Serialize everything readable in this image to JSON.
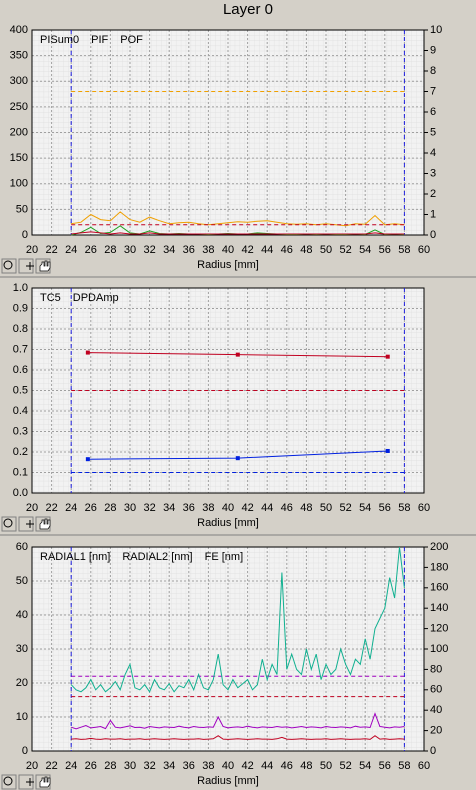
{
  "title": "Layer 0",
  "chart_data": [
    {
      "type": "line",
      "xlabel": "Radius [mm]",
      "xlim": [
        20,
        60
      ],
      "xticks": [
        20,
        22,
        24,
        26,
        28,
        30,
        32,
        34,
        36,
        38,
        40,
        42,
        44,
        46,
        48,
        50,
        52,
        54,
        56,
        58,
        60
      ],
      "ylim": [
        0,
        400
      ],
      "yticks": [
        0,
        50,
        100,
        150,
        200,
        250,
        300,
        350,
        400
      ],
      "y2lim": [
        0,
        10
      ],
      "y2ticks": [
        0,
        1,
        2,
        3,
        4,
        5,
        6,
        7,
        8,
        9,
        10
      ],
      "vlines": [
        24,
        58
      ],
      "grid": true,
      "markers": false,
      "x": [
        24,
        25,
        26,
        27,
        28,
        29,
        30,
        31,
        32,
        33,
        34,
        35,
        36,
        37,
        38,
        39,
        40,
        41,
        42,
        43,
        44,
        45,
        46,
        47,
        48,
        49,
        50,
        51,
        52,
        53,
        54,
        55,
        56,
        57,
        58
      ],
      "series": [
        {
          "name": "PISum0",
          "color": "#f0a000",
          "limit": 280,
          "values": [
            22,
            25,
            40,
            30,
            28,
            45,
            30,
            25,
            35,
            28,
            22,
            24,
            25,
            22,
            20,
            22,
            24,
            26,
            25,
            27,
            28,
            25,
            22,
            21,
            22,
            20,
            22,
            20,
            18,
            22,
            21,
            38,
            20,
            22,
            20
          ]
        },
        {
          "name": "PIF",
          "color": "#20a020",
          "values": [
            0,
            5,
            15,
            3,
            5,
            18,
            4,
            2,
            8,
            3,
            2,
            3,
            2,
            2,
            1,
            2,
            3,
            2,
            2,
            4,
            3,
            2,
            1,
            1,
            2,
            1,
            2,
            1,
            1,
            2,
            1,
            10,
            1,
            2,
            1
          ]
        },
        {
          "name": "POF",
          "color": "#c00020",
          "axis": "y2",
          "limit": 0.5,
          "values": [
            0.05,
            0.1,
            0.15,
            0.1,
            0.05,
            0.1,
            0.05,
            0.05,
            0.1,
            0.05,
            0.05,
            0.05,
            0.05,
            0.05,
            0.05,
            0.05,
            0.05,
            0.05,
            0.05,
            0.05,
            0.05,
            0.05,
            0.05,
            0.05,
            0.05,
            0.05,
            0.05,
            0.05,
            0.05,
            0.05,
            0.05,
            0.1,
            0.05,
            0.05,
            0.05
          ]
        }
      ]
    },
    {
      "type": "line",
      "xlabel": "Radius [mm]",
      "xlim": [
        20,
        60
      ],
      "xticks": [
        20,
        22,
        24,
        26,
        28,
        30,
        32,
        34,
        36,
        38,
        40,
        42,
        44,
        46,
        48,
        50,
        52,
        54,
        56,
        58,
        60
      ],
      "ylim": [
        0,
        1
      ],
      "yticks": [
        {
          "value": 0,
          "label": "0.0"
        },
        0.1,
        0.2,
        0.3,
        0.4,
        0.5,
        0.6,
        0.7,
        0.8,
        0.9,
        {
          "value": 1,
          "label": "1.0"
        }
      ],
      "vlines": [
        24,
        58
      ],
      "grid": true,
      "markers": true,
      "x": [
        25.7,
        41,
        56.3
      ],
      "series": [
        {
          "name": "TC5",
          "color": "#0020e0",
          "limit": 0.1,
          "values": [
            0.165,
            0.17,
            0.205
          ]
        },
        {
          "name": "DPDAmp",
          "color": "#c00020",
          "limit": 0.5,
          "values": [
            0.685,
            0.675,
            0.665
          ]
        }
      ]
    },
    {
      "type": "line",
      "xlabel": "Radius [mm]",
      "xlim": [
        20,
        60
      ],
      "xticks": [
        20,
        22,
        24,
        26,
        28,
        30,
        32,
        34,
        36,
        38,
        40,
        42,
        44,
        46,
        48,
        50,
        52,
        54,
        56,
        58,
        60
      ],
      "ylim": [
        0,
        60
      ],
      "yticks": [
        0,
        10,
        20,
        30,
        40,
        50,
        60
      ],
      "y2lim": [
        0,
        200
      ],
      "y2ticks": [
        0,
        20,
        40,
        60,
        80,
        100,
        120,
        140,
        160,
        180,
        200
      ],
      "vlines": [
        24,
        58
      ],
      "grid": true,
      "markers": false,
      "x": [
        24,
        24.5,
        25,
        25.5,
        26,
        26.5,
        27,
        27.5,
        28,
        28.5,
        29,
        29.5,
        30,
        30.5,
        31,
        31.5,
        32,
        32.5,
        33,
        33.5,
        34,
        34.5,
        35,
        35.5,
        36,
        36.5,
        37,
        37.5,
        38,
        38.5,
        39,
        39.5,
        40,
        40.5,
        41,
        41.5,
        42,
        42.5,
        43,
        43.5,
        44,
        44.5,
        45,
        45.5,
        46,
        46.5,
        47,
        47.5,
        48,
        48.5,
        49,
        49.5,
        50,
        50.5,
        51,
        51.5,
        52,
        52.5,
        53,
        53.5,
        54,
        54.5,
        55,
        55.5,
        56,
        56.5,
        57,
        57.5,
        58
      ],
      "series": [
        {
          "name": "RADIAL1 [nm]",
          "color": "#a000c0",
          "limit": 22,
          "values": [
            7,
            6.5,
            7,
            7.5,
            6.8,
            7,
            7.2,
            6.6,
            9,
            7,
            6.8,
            7.1,
            7.4,
            6.9,
            7,
            6.7,
            7.2,
            7,
            6.8,
            7.1,
            7,
            6.9,
            7.3,
            7,
            6.8,
            7.2,
            7,
            6.9,
            7.1,
            7,
            10,
            7.2,
            6.8,
            7,
            7.1,
            6.9,
            7.3,
            7,
            6.8,
            7.1,
            7,
            6.9,
            7.2,
            7,
            7.1,
            6.8,
            7,
            7.2,
            6.9,
            7.1,
            7,
            6.8,
            7.2,
            7,
            6.9,
            7.1,
            7,
            6.8,
            7.3,
            7,
            7.1,
            6.9,
            11,
            7.2,
            7,
            6.8,
            7.1,
            7,
            7.2
          ]
        },
        {
          "name": "RADIAL2 [nm]",
          "color": "#c00020",
          "limit": 16,
          "values": [
            3.5,
            3.6,
            3.4,
            3.5,
            3.7,
            3.5,
            3.4,
            3.6,
            3.5,
            3.5,
            3.6,
            3.4,
            3.5,
            3.5,
            3.6,
            3.4,
            3.5,
            3.6,
            3.5,
            3.4,
            3.5,
            3.6,
            3.5,
            3.4,
            3.5,
            3.5,
            3.6,
            3.4,
            3.5,
            3.6,
            4.5,
            3.5,
            3.4,
            3.5,
            3.6,
            3.5,
            3.4,
            3.5,
            3.6,
            3.5,
            3.5,
            3.4,
            3.6,
            4,
            3.5,
            3.4,
            3.5,
            3.6,
            3.5,
            3.4,
            3.5,
            3.5,
            3.6,
            3.4,
            3.5,
            3.6,
            3.5,
            3.4,
            3.5,
            3.5,
            3.6,
            3.4,
            4.5,
            3.5,
            3.6,
            3.4,
            3.5,
            3.6,
            3.5
          ]
        },
        {
          "name": "FE [nm]",
          "color": "#10b090",
          "axis": "y2",
          "values": [
            65,
            60,
            58,
            62,
            70,
            60,
            65,
            58,
            62,
            68,
            60,
            75,
            85,
            62,
            60,
            65,
            58,
            70,
            62,
            60,
            66,
            58,
            64,
            62,
            70,
            60,
            75,
            62,
            60,
            70,
            95,
            65,
            60,
            70,
            62,
            66,
            70,
            60,
            65,
            90,
            70,
            85,
            75,
            175,
            80,
            95,
            80,
            75,
            100,
            80,
            95,
            70,
            85,
            75,
            80,
            100,
            85,
            75,
            90,
            85,
            110,
            90,
            120,
            130,
            140,
            170,
            150,
            200,
            160
          ]
        }
      ]
    }
  ]
}
